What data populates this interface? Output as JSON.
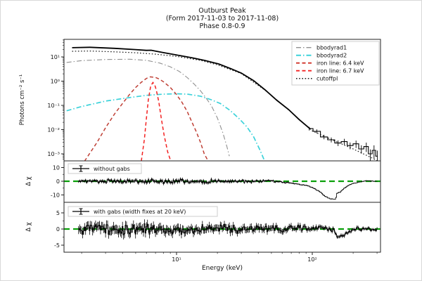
{
  "title": {
    "line1": "Outburst Peak",
    "line2": "(Form 2017-11-03 to 2017-11-08)",
    "line3": "Phase 0.8-0.9"
  },
  "x_axis": {
    "label": "Energy (keV)",
    "scale": "log",
    "range_kev": [
      1.48,
      318
    ],
    "major_ticks": [
      {
        "v": 10,
        "label": "10¹"
      },
      {
        "v": 100,
        "label": "10²"
      }
    ],
    "minor_ticks": [
      2,
      3,
      4,
      5,
      6,
      7,
      8,
      9,
      20,
      30,
      40,
      50,
      60,
      70,
      80,
      90,
      200,
      300
    ]
  },
  "colors": {
    "total": "#000000",
    "cutoffpl": "#1a1a1a",
    "bbodyrad1": "#909090",
    "bbodyrad2": "#3cd2da",
    "iron_64": "#bf3f35",
    "iron_67": "#f32222",
    "zero_line": "#0aa00a",
    "axis": "#222222",
    "legend_border": "#cccccc"
  },
  "chart_data": [
    {
      "id": "spectrum",
      "type": "line",
      "x_scale": "log",
      "y_scale": "log",
      "ylabel": "Photons cm⁻² s⁻¹",
      "y_range": [
        0.00051,
        53
      ],
      "y_major_ticks": [
        {
          "v": 10,
          "label": "10¹"
        },
        {
          "v": 1,
          "label": "10⁰"
        },
        {
          "v": 0.1,
          "label": "10⁻¹"
        },
        {
          "v": 0.01,
          "label": "10⁻²"
        },
        {
          "v": 0.001,
          "label": "10⁻³"
        }
      ],
      "legend_position": "top-right",
      "legend": [
        {
          "label": "bbodyrad1",
          "color": "#909090",
          "dash": "dashdot",
          "width": 1.1
        },
        {
          "label": "bbodyrad2",
          "color": "#3cd2da",
          "dash": "dashdot",
          "width": 1.7
        },
        {
          "label": "iron line: 6.4 keV",
          "color": "#d03228",
          "dash": "dash",
          "width": 1.5
        },
        {
          "label": "iron line: 6.7 keV",
          "color": "#f32222",
          "dash": "dash",
          "width": 1.5
        },
        {
          "label": "cutoffpl",
          "color": "#1a1a1a",
          "dash": "dot",
          "width": 1.2
        }
      ],
      "series": [
        {
          "name": "bbodyrad1",
          "color": "#909090",
          "dash": "dashdot",
          "width": 1.1,
          "x": [
            1.55,
            2,
            3,
            4.5,
            6,
            7.5,
            9,
            10.5,
            12,
            13.5,
            15,
            16.5,
            18,
            20,
            22,
            23.5,
            24.5
          ],
          "y": [
            5.9,
            7.0,
            7.8,
            8.0,
            7.2,
            5.6,
            3.9,
            2.5,
            1.4,
            0.75,
            0.4,
            0.2,
            0.1,
            0.03,
            0.007,
            0.002,
            0.0008
          ]
        },
        {
          "name": "bbodyrad2",
          "color": "#3cd2da",
          "dash": "dashdot",
          "width": 1.7,
          "x": [
            1.55,
            2,
            3,
            4.5,
            6,
            8,
            10,
            12,
            15,
            18,
            21,
            25,
            29,
            33,
            37,
            41,
            44
          ],
          "y": [
            0.06,
            0.09,
            0.15,
            0.21,
            0.26,
            0.29,
            0.3,
            0.29,
            0.24,
            0.17,
            0.12,
            0.06,
            0.028,
            0.013,
            0.005,
            0.0015,
            0.0006
          ]
        },
        {
          "name": "iron-line-6.4",
          "color": "#bf3f35",
          "dash": "dash",
          "width": 1.5,
          "x": [
            2.1,
            2.6,
            3,
            3.5,
            4,
            4.5,
            5,
            5.5,
            6,
            6.4,
            7,
            7.5,
            8,
            9,
            10,
            11,
            12,
            13,
            14,
            15,
            16,
            17.5
          ],
          "y": [
            0.0005,
            0.003,
            0.012,
            0.045,
            0.12,
            0.28,
            0.55,
            0.9,
            1.3,
            1.5,
            1.42,
            1.2,
            0.95,
            0.55,
            0.28,
            0.13,
            0.055,
            0.02,
            0.008,
            0.003,
            0.001,
            0.0004
          ]
        },
        {
          "name": "iron-line-6.7",
          "color": "#f32222",
          "dash": "dash",
          "width": 1.5,
          "x": [
            5.5,
            5.8,
            6.0,
            6.2,
            6.45,
            6.7,
            6.9,
            7.1,
            7.4,
            7.7,
            8.1,
            8.6,
            9.2
          ],
          "y": [
            0.0005,
            0.004,
            0.03,
            0.17,
            0.62,
            0.88,
            0.72,
            0.42,
            0.14,
            0.032,
            0.006,
            0.0012,
            0.0004
          ]
        },
        {
          "name": "cutoffpl",
          "color": "#1a1a1a",
          "dash": "dot",
          "width": 1.2,
          "x": [
            1.7,
            2.3,
            3.5,
            5,
            7,
            10,
            15,
            20,
            30,
            45,
            67,
            100,
            140,
            200,
            280,
            314
          ],
          "y": [
            17,
            17.5,
            16.2,
            14.8,
            13,
            10.5,
            7.2,
            4.7,
            2.05,
            0.42,
            0.065,
            0.0088,
            0.0038,
            0.0016,
            0.00065,
            0.00045
          ]
        },
        {
          "name": "total",
          "color": "#000000",
          "dash": "solid",
          "width": 1.8,
          "x": [
            1.7,
            2.3,
            3.5,
            5,
            6,
            6.5,
            7,
            8,
            10,
            13,
            16,
            20.5,
            25,
            30,
            37,
            45,
            55,
            67,
            80,
            97
          ],
          "y": [
            24,
            25,
            22.5,
            20,
            18.6,
            18.8,
            17.4,
            15,
            12,
            9.2,
            7.2,
            5.1,
            3.3,
            2.15,
            1.05,
            0.43,
            0.16,
            0.067,
            0.026,
            0.0105
          ]
        }
      ],
      "data_steps": {
        "name": "binned-data-high-energy",
        "color": "#000000",
        "width": 1.1,
        "x": [
          95,
          108,
          122,
          138,
          155,
          172,
          190,
          210,
          230,
          250,
          268,
          285,
          302
        ],
        "y": [
          0.011,
          0.0085,
          0.005,
          0.0038,
          0.0028,
          0.0032,
          0.0022,
          0.0026,
          0.0016,
          0.002,
          0.001,
          0.0014,
          0.0008
        ],
        "yerr_rel": [
          0.18,
          0.2,
          0.22,
          0.25,
          0.28,
          0.3,
          0.33,
          0.36,
          0.4,
          0.45,
          0.52,
          0.6,
          0.7
        ]
      }
    },
    {
      "id": "residual-without-gabs",
      "type": "line",
      "ylabel": "Δ χ",
      "legend_label": "without gabs",
      "y_range": [
        -15.4,
        14.9
      ],
      "y_major_ticks": [
        {
          "v": 10,
          "label": "10"
        },
        {
          "v": 0,
          "label": "0"
        },
        {
          "v": -10,
          "label": "-10"
        }
      ],
      "y_minor_ticks": [
        5,
        -5
      ],
      "zero_line": 0,
      "x_start_kev": 1.9,
      "x_end_kev": 300,
      "trend": [
        [
          1.9,
          0
        ],
        [
          50,
          0
        ],
        [
          60,
          -0.5
        ],
        [
          75,
          -1.5
        ],
        [
          90,
          -3
        ],
        [
          105,
          -5.5
        ],
        [
          115,
          -8
        ],
        [
          125,
          -11
        ],
        [
          135,
          -12.8
        ],
        [
          148,
          -13.2
        ],
        [
          153,
          -8.5
        ],
        [
          162,
          -7.8
        ],
        [
          172,
          -5
        ],
        [
          185,
          -3
        ],
        [
          200,
          -1.6
        ],
        [
          220,
          -0.6
        ],
        [
          250,
          0.4
        ],
        [
          280,
          0.1
        ],
        [
          300,
          0
        ]
      ],
      "noise_amp": [
        [
          1.9,
          1.5
        ],
        [
          3,
          1.9
        ],
        [
          6,
          2.2
        ],
        [
          15,
          2.1
        ],
        [
          30,
          1.5
        ],
        [
          60,
          0.9
        ],
        [
          100,
          0.5
        ],
        [
          150,
          0.4
        ],
        [
          300,
          0.35
        ]
      ]
    },
    {
      "id": "residual-with-gabs",
      "type": "line",
      "ylabel": "Δ χ",
      "legend_label": "with gabs (width fixes at 20 keV)",
      "y_range": [
        -7.2,
        8.3
      ],
      "y_major_ticks": [
        {
          "v": 5,
          "label": "5"
        },
        {
          "v": 0,
          "label": "0"
        },
        {
          "v": -5,
          "label": "-5"
        }
      ],
      "y_minor_ticks": [
        2.5,
        -2.5
      ],
      "zero_line": 0,
      "x_start_kev": 1.9,
      "x_end_kev": 300,
      "trend": [
        [
          1.9,
          0
        ],
        [
          3,
          0.2
        ],
        [
          5,
          -0.2
        ],
        [
          8,
          0.1
        ],
        [
          12,
          -0.3
        ],
        [
          20,
          0.2
        ],
        [
          30,
          -0.2
        ],
        [
          45,
          0.3
        ],
        [
          60,
          -0.2
        ],
        [
          80,
          0.4
        ],
        [
          100,
          0
        ],
        [
          120,
          0.5
        ],
        [
          135,
          0.2
        ],
        [
          145,
          -0.3
        ],
        [
          152,
          -2.3
        ],
        [
          160,
          -2.7
        ],
        [
          170,
          -1.9
        ],
        [
          182,
          -1.2
        ],
        [
          195,
          -0.6
        ],
        [
          215,
          0.4
        ],
        [
          235,
          -0.2
        ],
        [
          255,
          0.5
        ],
        [
          272,
          -0.4
        ],
        [
          290,
          -0.2
        ],
        [
          305,
          0
        ]
      ],
      "noise_amp": [
        [
          1.9,
          2.2
        ],
        [
          4,
          2.6
        ],
        [
          8,
          2.3
        ],
        [
          15,
          2.0
        ],
        [
          30,
          1.8
        ],
        [
          60,
          1.6
        ],
        [
          100,
          1.2
        ],
        [
          150,
          0.9
        ],
        [
          300,
          0.7
        ]
      ]
    }
  ]
}
